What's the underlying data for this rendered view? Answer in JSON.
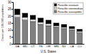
{
  "chart_data": {
    "type": "bar",
    "stacked": true,
    "x_label": "U.S. States",
    "y_label": "Cases per 100,000 population",
    "categories": [
      "GA",
      "MD",
      "CT",
      "TN",
      "OR",
      "MN",
      "NY",
      "CA",
      "CO"
    ],
    "series": [
      {
        "name": "Penicillin susceptible",
        "color": "#808080",
        "values": [
          19,
          17,
          16,
          14,
          13,
          12,
          11,
          10,
          8
        ]
      },
      {
        "name": "Penicillin intermediate",
        "color": "#d9d9d9",
        "values": [
          2,
          2,
          1.5,
          1.5,
          1.5,
          1,
          1,
          1,
          1
        ]
      },
      {
        "name": "Penicillin resistant",
        "color": "#000000",
        "values": [
          4,
          3,
          3,
          3,
          2.5,
          2,
          2,
          1.5,
          1.5
        ]
      }
    ],
    "ylim": [
      0,
      30
    ],
    "yticks": [
      0,
      5,
      10,
      15,
      20,
      25,
      30
    ],
    "legend": "top-right",
    "grid": false
  }
}
